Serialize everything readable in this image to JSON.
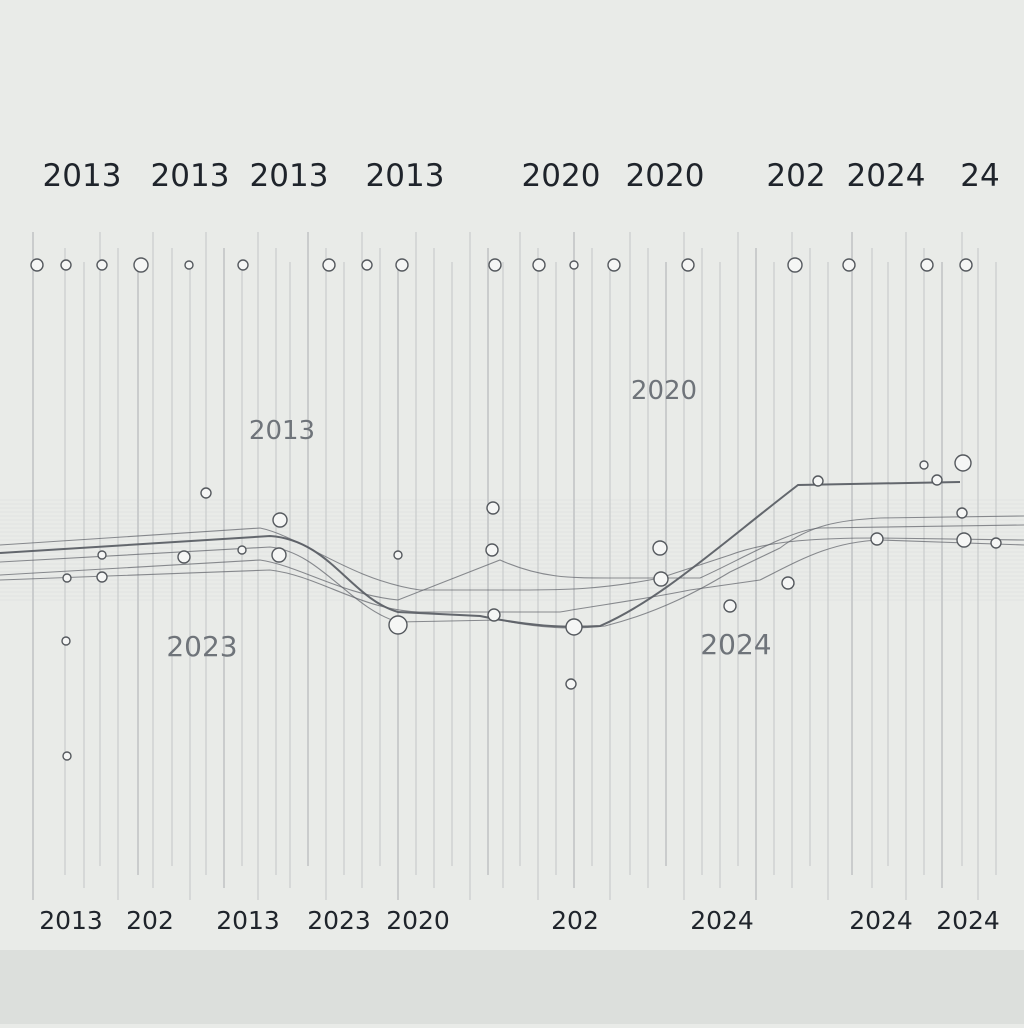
{
  "diagram": {
    "colors": {
      "background": "#e9ebe8",
      "floor": "#dcdfdc",
      "grid_line": "#a9adb0",
      "rail_line": "#5c6066",
      "label": "#1f242b",
      "label_faded": "#6f747a",
      "node_fill": "#f5f6f5",
      "node_stroke": "#55595e"
    },
    "top_labels": [
      "2013",
      "2013",
      "2013",
      "2013",
      "2020",
      "2020",
      "202",
      "2024",
      "24"
    ],
    "mid_labels": [
      "2013",
      "2020",
      "2023",
      "2024"
    ],
    "bottom_labels": [
      "2013",
      "202",
      "2013",
      "2023",
      "2020",
      "202",
      "2024",
      "2024",
      "2024"
    ]
  }
}
